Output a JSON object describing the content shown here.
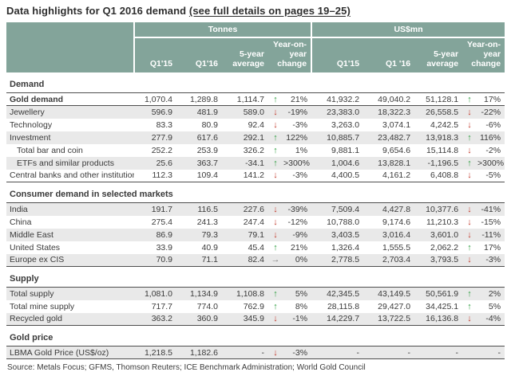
{
  "title": {
    "main": "Data highlights for Q1 2016 demand ",
    "link": "(see full details on pages 19–25)"
  },
  "header": {
    "groups": [
      {
        "id": "tonnes",
        "label": "Tonnes"
      },
      {
        "id": "usd",
        "label": "US$mn"
      }
    ],
    "subcolumns_tonnes": [
      "Q1'15",
      "Q1'16",
      "5-year\naverage",
      "Year-on-\nyear change"
    ],
    "subcolumns_usd": [
      "Q1'15",
      "Q1 '16",
      "5-year\naverage",
      "Year-on-\nyear change"
    ]
  },
  "arrows": {
    "up": "↑",
    "down": "↓",
    "flat": "→"
  },
  "colors": {
    "header_bg": "#83a49a",
    "row_shade": "#e9e9e9",
    "rule": "#4d4d4d",
    "arrow_up": "#2f9e41",
    "arrow_down": "#c0392b",
    "arrow_flat": "#7f7f7f",
    "header_text": "#ffffff",
    "text": "#3a3a3a"
  },
  "sections": [
    {
      "title": "Demand",
      "rows": [
        {
          "label": "Gold demand",
          "bold": true,
          "indent": false,
          "shaded": false,
          "rule_below": true,
          "t": {
            "q115": "1,070.4",
            "q116": "1,289.8",
            "avg": "1,114.7",
            "dir": "up",
            "chg": "21%"
          },
          "u": {
            "q115": "41,932.2",
            "q116": "49,040.2",
            "avg": "51,128.1",
            "dir": "up",
            "chg": "17%"
          }
        },
        {
          "label": "Jewellery",
          "bold": false,
          "indent": false,
          "shaded": true,
          "rule_below": false,
          "t": {
            "q115": "596.9",
            "q116": "481.9",
            "avg": "589.0",
            "dir": "down",
            "chg": "-19%"
          },
          "u": {
            "q115": "23,383.0",
            "q116": "18,322.3",
            "avg": "26,558.5",
            "dir": "down",
            "chg": "-22%"
          }
        },
        {
          "label": "Technology",
          "bold": false,
          "indent": false,
          "shaded": false,
          "rule_below": false,
          "t": {
            "q115": "83.3",
            "q116": "80.9",
            "avg": "92.4",
            "dir": "down",
            "chg": "-3%"
          },
          "u": {
            "q115": "3,263.0",
            "q116": "3,074.1",
            "avg": "4,242.5",
            "dir": "down",
            "chg": "-6%"
          }
        },
        {
          "label": "Investment",
          "bold": false,
          "indent": false,
          "shaded": true,
          "rule_below": false,
          "t": {
            "q115": "277.9",
            "q116": "617.6",
            "avg": "292.1",
            "dir": "up",
            "chg": "122%"
          },
          "u": {
            "q115": "10,885.7",
            "q116": "23,482.7",
            "avg": "13,918.3",
            "dir": "up",
            "chg": "116%"
          }
        },
        {
          "label": "Total bar and coin",
          "bold": false,
          "indent": true,
          "shaded": false,
          "rule_below": false,
          "t": {
            "q115": "252.2",
            "q116": "253.9",
            "avg": "326.2",
            "dir": "up",
            "chg": "1%"
          },
          "u": {
            "q115": "9,881.1",
            "q116": "9,654.6",
            "avg": "15,114.8",
            "dir": "down",
            "chg": "-2%"
          }
        },
        {
          "label": "ETFs and similar products",
          "bold": false,
          "indent": true,
          "shaded": true,
          "rule_below": false,
          "t": {
            "q115": "25.6",
            "q116": "363.7",
            "avg": "-34.1",
            "dir": "up",
            "chg": ">300%"
          },
          "u": {
            "q115": "1,004.6",
            "q116": "13,828.1",
            "avg": "-1,196.5",
            "dir": "up",
            "chg": ">300%"
          }
        },
        {
          "label": "Central banks and other institutions",
          "bold": false,
          "indent": false,
          "shaded": false,
          "rule_below": false,
          "t": {
            "q115": "112.3",
            "q116": "109.4",
            "avg": "141.2",
            "dir": "down",
            "chg": "-3%"
          },
          "u": {
            "q115": "4,400.5",
            "q116": "4,161.2",
            "avg": "6,408.8",
            "dir": "down",
            "chg": "-5%"
          }
        }
      ]
    },
    {
      "title": "Consumer demand in selected markets",
      "rows": [
        {
          "label": "India",
          "bold": false,
          "indent": false,
          "shaded": true,
          "rule_below": false,
          "t": {
            "q115": "191.7",
            "q116": "116.5",
            "avg": "227.6",
            "dir": "down",
            "chg": "-39%"
          },
          "u": {
            "q115": "7,509.4",
            "q116": "4,427.8",
            "avg": "10,377.6",
            "dir": "down",
            "chg": "-41%"
          }
        },
        {
          "label": "China",
          "bold": false,
          "indent": false,
          "shaded": false,
          "rule_below": false,
          "t": {
            "q115": "275.4",
            "q116": "241.3",
            "avg": "247.4",
            "dir": "down",
            "chg": "-12%"
          },
          "u": {
            "q115": "10,788.0",
            "q116": "9,174.6",
            "avg": "11,210.3",
            "dir": "down",
            "chg": "-15%"
          }
        },
        {
          "label": "Middle East",
          "bold": false,
          "indent": false,
          "shaded": true,
          "rule_below": false,
          "t": {
            "q115": "86.9",
            "q116": "79.3",
            "avg": "79.1",
            "dir": "down",
            "chg": "-9%"
          },
          "u": {
            "q115": "3,403.5",
            "q116": "3,016.4",
            "avg": "3,601.0",
            "dir": "down",
            "chg": "-11%"
          }
        },
        {
          "label": "United States",
          "bold": false,
          "indent": false,
          "shaded": false,
          "rule_below": false,
          "t": {
            "q115": "33.9",
            "q116": "40.9",
            "avg": "45.4",
            "dir": "up",
            "chg": "21%"
          },
          "u": {
            "q115": "1,326.4",
            "q116": "1,555.5",
            "avg": "2,062.2",
            "dir": "up",
            "chg": "17%"
          }
        },
        {
          "label": "Europe ex CIS",
          "bold": false,
          "indent": false,
          "shaded": true,
          "rule_below": false,
          "t": {
            "q115": "70.9",
            "q116": "71.1",
            "avg": "82.4",
            "dir": "flat",
            "chg": "0%"
          },
          "u": {
            "q115": "2,778.5",
            "q116": "2,703.4",
            "avg": "3,793.5",
            "dir": "down",
            "chg": "-3%"
          }
        }
      ]
    },
    {
      "title": "Supply",
      "rows": [
        {
          "label": "Total supply",
          "bold": false,
          "indent": false,
          "shaded": true,
          "rule_below": false,
          "t": {
            "q115": "1,081.0",
            "q116": "1,134.9",
            "avg": "1,108.8",
            "dir": "up",
            "chg": "5%"
          },
          "u": {
            "q115": "42,345.5",
            "q116": "43,149.5",
            "avg": "50,561.9",
            "dir": "up",
            "chg": "2%"
          }
        },
        {
          "label": "Total mine supply",
          "bold": false,
          "indent": false,
          "shaded": false,
          "rule_below": false,
          "t": {
            "q115": "717.7",
            "q116": "774.0",
            "avg": "762.9",
            "dir": "up",
            "chg": "8%"
          },
          "u": {
            "q115": "28,115.8",
            "q116": "29,427.0",
            "avg": "34,425.1",
            "dir": "up",
            "chg": "5%"
          }
        },
        {
          "label": "Recycled gold",
          "bold": false,
          "indent": false,
          "shaded": true,
          "rule_below": false,
          "t": {
            "q115": "363.2",
            "q116": "360.9",
            "avg": "345.9",
            "dir": "down",
            "chg": "-1%"
          },
          "u": {
            "q115": "14,229.7",
            "q116": "13,722.5",
            "avg": "16,136.8",
            "dir": "down",
            "chg": "-4%"
          }
        }
      ]
    },
    {
      "title": "Gold price",
      "rows": [
        {
          "label": "LBMA Gold Price (US$/oz)",
          "bold": false,
          "indent": false,
          "shaded": true,
          "rule_below": false,
          "t": {
            "q115": "1,218.5",
            "q116": "1,182.6",
            "avg": "-",
            "dir": "down",
            "chg": "-3%"
          },
          "u": {
            "q115": "-",
            "q116": "-",
            "avg": "-",
            "dir": "",
            "chg": "-"
          }
        }
      ]
    }
  ],
  "source": "Source: Metals Focus; GFMS, Thomson Reuters; ICE Benchmark Administration; World Gold Council"
}
